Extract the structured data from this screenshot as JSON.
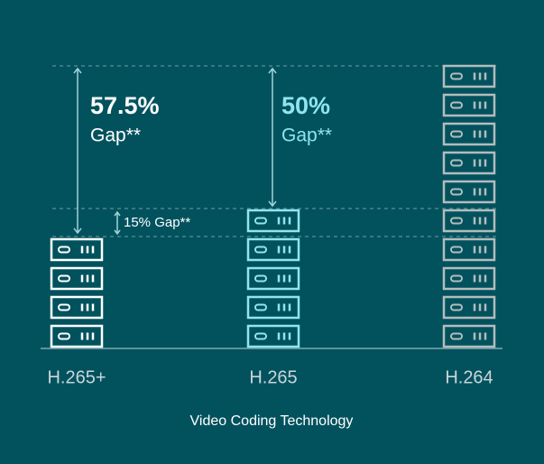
{
  "chart_data": {
    "type": "pictogram",
    "x_label": "Video Coding Technology",
    "categories": [
      "H.265+",
      "H.265",
      "H.264"
    ],
    "values": [
      4,
      5,
      10
    ],
    "colors": [
      "#ffffff",
      "#8fe6ee",
      "#b3bcbc"
    ],
    "annotations": [
      {
        "text": "57.5%",
        "note": "Gap**"
      },
      {
        "text": "50%",
        "note": "Gap**"
      },
      {
        "text": "15% Gap**"
      }
    ]
  }
}
